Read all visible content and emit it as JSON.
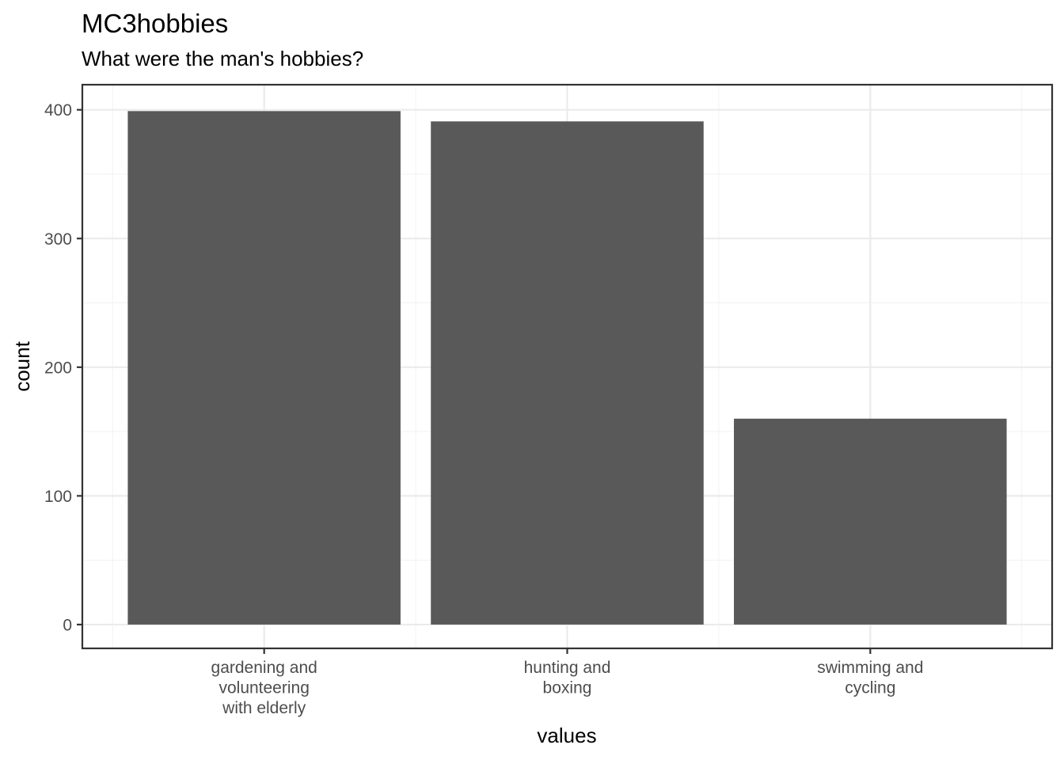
{
  "chart_data": {
    "type": "bar",
    "title": "MC3hobbies",
    "subtitle": "What were the man's hobbies?",
    "xlabel": "values",
    "ylabel": "count",
    "categories": [
      [
        "gardening and",
        "volunteering",
        "with elderly"
      ],
      [
        "hunting and",
        "boxing"
      ],
      [
        "swimming and",
        "cycling"
      ]
    ],
    "values": [
      399,
      391,
      160
    ],
    "ylim": [
      -18.5,
      419.5
    ],
    "yticks": [
      0,
      100,
      200,
      300,
      400
    ],
    "bar_color": "#595959",
    "grid": true,
    "legend": "none"
  }
}
